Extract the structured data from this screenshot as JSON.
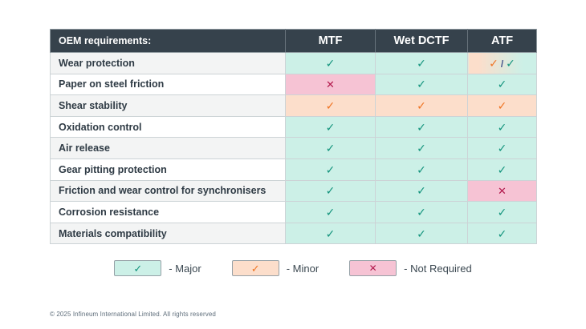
{
  "table": {
    "header": {
      "col0": "OEM requirements:",
      "cols": [
        "MTF",
        "Wet DCTF",
        "ATF"
      ]
    },
    "rows": [
      {
        "label": "Wear protection",
        "cells": [
          "major",
          "major",
          "dual"
        ]
      },
      {
        "label": "Paper on steel friction",
        "cells": [
          "not",
          "major",
          "major"
        ]
      },
      {
        "label": "Shear stability",
        "cells": [
          "minor",
          "minor",
          "minor"
        ]
      },
      {
        "label": "Oxidation control",
        "cells": [
          "major",
          "major",
          "major"
        ]
      },
      {
        "label": "Air release",
        "cells": [
          "major",
          "major",
          "major"
        ]
      },
      {
        "label": "Gear pitting protection",
        "cells": [
          "major",
          "major",
          "major"
        ]
      },
      {
        "label": "Friction and wear control for synchronisers",
        "cells": [
          "major",
          "major",
          "not"
        ]
      },
      {
        "label": "Corrosion resistance",
        "cells": [
          "major",
          "major",
          "major"
        ]
      },
      {
        "label": "Materials compatibility",
        "cells": [
          "major",
          "major",
          "major"
        ]
      }
    ]
  },
  "marks": {
    "major": {
      "glyph": "✓",
      "bg": "#ccf0e7",
      "color": "#12937c"
    },
    "minor": {
      "glyph": "✓",
      "bg": "#fcdecb",
      "color": "#ef7423"
    },
    "not": {
      "glyph": "✕",
      "bg": "#f6c3d4",
      "color": "#b21a4d"
    },
    "dual_separator": "/"
  },
  "legend": [
    {
      "type": "major",
      "text": "- Major"
    },
    {
      "type": "minor",
      "text": "- Minor"
    },
    {
      "type": "not",
      "text": "- Not Required"
    }
  ],
  "footer": "© 2025 Infineum International Limited. All rights reserved",
  "colors": {
    "header_bg": "#36424c",
    "major_bg": "#ccf0e7",
    "major_check": "#12937c",
    "minor_bg": "#fcdecb",
    "minor_check": "#ef7423",
    "not_required_bg": "#f6c3d4",
    "not_required_x": "#b21a4d",
    "row_alt_bg": "#f3f4f4"
  }
}
